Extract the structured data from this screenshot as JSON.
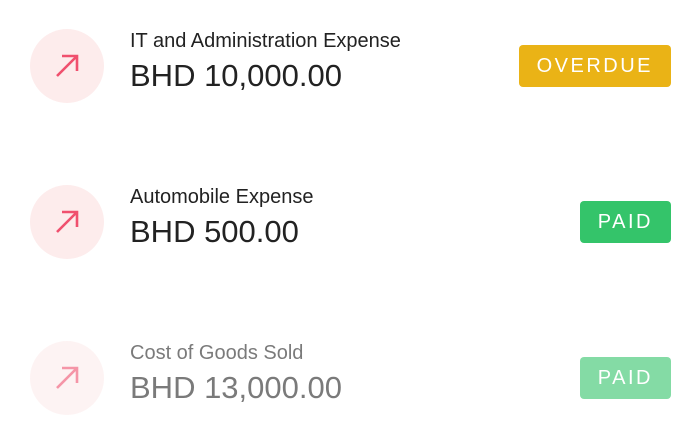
{
  "transactions": [
    {
      "title": "IT and Administration Expense",
      "amount": "BHD 10,000.00",
      "status": "OVERDUE",
      "status_color": "#eab316",
      "icon": "arrow-up-right-icon"
    },
    {
      "title": "Automobile Expense",
      "amount": "BHD 500.00",
      "status": "PAID",
      "status_color": "#34c46a",
      "icon": "arrow-up-right-icon"
    },
    {
      "title": "Cost of Goods Sold",
      "amount": "BHD 13,000.00",
      "status": "PAID",
      "status_color": "#34c46a",
      "icon": "arrow-up-right-icon"
    }
  ],
  "icon_color": "#f0506e"
}
